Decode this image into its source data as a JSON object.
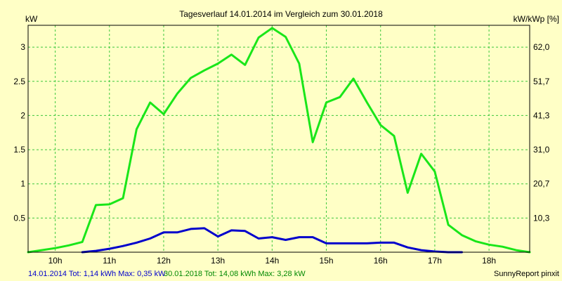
{
  "chart_data": {
    "type": "line",
    "title": "Tagesverlauf 14.01.2014 im Vergleich zum 30.01.2018",
    "ylabel_left": "kW",
    "ylabel_right": "kW/kWp [%]",
    "xlim": [
      9.5,
      18.75
    ],
    "ylim": [
      0,
      3.32
    ],
    "x_ticks": [
      10,
      11,
      12,
      13,
      14,
      15,
      16,
      17,
      18
    ],
    "x_tick_labels": [
      "10h",
      "11h",
      "12h",
      "13h",
      "14h",
      "15h",
      "16h",
      "17h",
      "18h"
    ],
    "y_ticks": [
      0.5,
      1,
      1.5,
      2,
      2.5,
      3
    ],
    "y_tick_labels": [
      "0.5",
      "1",
      "1.5",
      "2",
      "2.5",
      "3"
    ],
    "y2_ticks": [
      0.5,
      1,
      1.5,
      2,
      2.5,
      3
    ],
    "y2_tick_labels": [
      "10,3",
      "20,7",
      "31,0",
      "41,3",
      "51,7",
      "62,0"
    ],
    "grid": true,
    "colors": {
      "background": "#ffffc6",
      "grid": "#3cc83c",
      "series_2014": "#0000cc",
      "series_2018": "#19e619"
    },
    "series": [
      {
        "name": "30.01.2018",
        "color": "#19e619",
        "x": [
          9.5,
          9.75,
          10.0,
          10.25,
          10.5,
          10.75,
          11.0,
          11.25,
          11.5,
          11.75,
          12.0,
          12.25,
          12.5,
          12.75,
          13.0,
          13.25,
          13.5,
          13.75,
          14.0,
          14.25,
          14.5,
          14.75,
          15.0,
          15.25,
          15.5,
          15.75,
          16.0,
          16.25,
          16.5,
          16.75,
          17.0,
          17.25,
          17.5,
          17.75,
          18.0,
          18.25,
          18.5,
          18.75
        ],
        "y": [
          0.0,
          0.03,
          0.06,
          0.1,
          0.15,
          0.69,
          0.7,
          0.79,
          1.8,
          2.19,
          2.02,
          2.32,
          2.55,
          2.66,
          2.76,
          2.89,
          2.74,
          3.14,
          3.28,
          3.15,
          2.76,
          1.61,
          2.19,
          2.27,
          2.54,
          2.19,
          1.86,
          1.7,
          0.87,
          1.44,
          1.18,
          0.4,
          0.25,
          0.16,
          0.11,
          0.08,
          0.03,
          0.0
        ]
      },
      {
        "name": "14.01.2014",
        "color": "#0000cc",
        "x": [
          10.5,
          10.75,
          11.0,
          11.25,
          11.5,
          11.75,
          12.0,
          12.25,
          12.5,
          12.75,
          13.0,
          13.25,
          13.5,
          13.75,
          14.0,
          14.25,
          14.5,
          14.75,
          15.0,
          15.25,
          15.5,
          15.75,
          16.0,
          16.25,
          16.5,
          16.75,
          17.0,
          17.25,
          17.5
        ],
        "y": [
          0.0,
          0.02,
          0.05,
          0.09,
          0.14,
          0.2,
          0.29,
          0.29,
          0.34,
          0.35,
          0.23,
          0.32,
          0.31,
          0.2,
          0.22,
          0.18,
          0.22,
          0.22,
          0.13,
          0.13,
          0.13,
          0.13,
          0.14,
          0.14,
          0.07,
          0.03,
          0.01,
          0.0,
          0.0
        ]
      }
    ]
  },
  "footer": {
    "legend_2014": "14.01.2014 Tot: 1,14 kWh Max: 0,35 kW",
    "legend_2018": "30.01.2018 Tot: 14,08 kWh Max: 3,28 kW",
    "credit": "SunnyReport pinxit"
  }
}
